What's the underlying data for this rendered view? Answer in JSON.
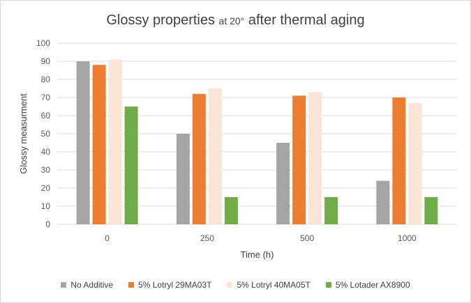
{
  "chart_data": {
    "type": "bar",
    "title_part1": "Glossy properties",
    "title_part2": "at 20°",
    "title_part3": "after thermal aging",
    "xlabel": "Time (h)",
    "ylabel": "Glossy measurment",
    "categories": [
      "0",
      "250",
      "500",
      "1000"
    ],
    "ylim": [
      0,
      100
    ],
    "yticks": [
      0,
      10,
      20,
      30,
      40,
      50,
      60,
      70,
      80,
      90,
      100
    ],
    "grid": true,
    "legend_position": "bottom",
    "series": [
      {
        "name": "No Additive",
        "color": "#a5a5a5",
        "values": [
          90,
          50,
          45,
          24
        ]
      },
      {
        "name": "5% Lotryl 29MA03T",
        "color": "#ed7d31",
        "values": [
          88,
          72,
          71,
          70
        ]
      },
      {
        "name": "5% Lotryl 40MA05T",
        "color": "#fbe5d6",
        "values": [
          91,
          75,
          73,
          67
        ]
      },
      {
        "name": "5% Lotader AX8900",
        "color": "#70ad47",
        "values": [
          65,
          15,
          15,
          15
        ]
      }
    ]
  }
}
